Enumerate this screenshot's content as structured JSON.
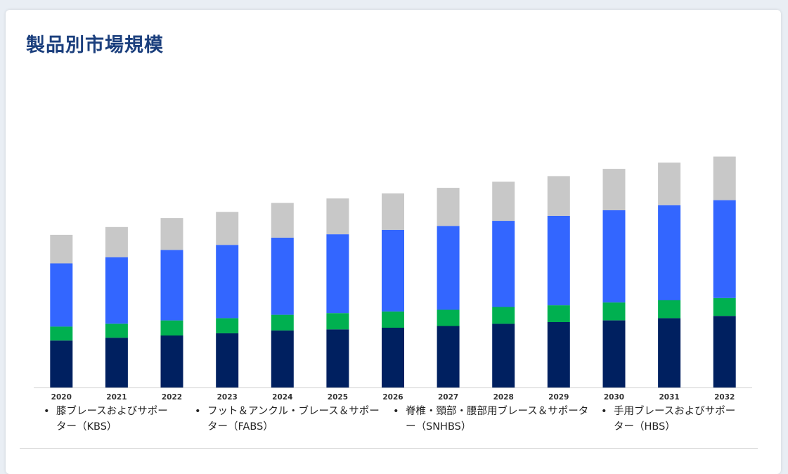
{
  "page": {
    "title": "製品別市場規模"
  },
  "chart_data": {
    "type": "bar",
    "stacked": true,
    "categories": [
      "2020",
      "2021",
      "2022",
      "2023",
      "2024",
      "2025",
      "2026",
      "2027",
      "2028",
      "2029",
      "2030",
      "2031",
      "2032"
    ],
    "series": [
      {
        "name": "膝ブレースおよびサポーター（KBS）",
        "color": "#002060",
        "values": [
          84,
          89,
          93,
          97,
          102,
          104,
          107,
          110,
          114,
          117,
          120,
          124,
          128
        ]
      },
      {
        "name": "フット＆アンクル・ブレース＆サポーター（FABS）",
        "color": "#00b050",
        "values": [
          25,
          25,
          27,
          27,
          28,
          29,
          29,
          29,
          30,
          30,
          32,
          32,
          32
        ]
      },
      {
        "name": "脊椎・頸部・腰部用ブレース＆サポーター（SNHBS）",
        "color": "#3366ff",
        "values": [
          113,
          119,
          126,
          131,
          138,
          141,
          146,
          150,
          154,
          160,
          165,
          170,
          175
        ]
      },
      {
        "name": "手用ブレースおよびサポーター（HBS）",
        "color": "#c8c8c8",
        "values": [
          51,
          54,
          57,
          59,
          62,
          64,
          65,
          68,
          70,
          71,
          74,
          76,
          78
        ]
      }
    ],
    "ylim": [
      0,
      415
    ],
    "grid": false,
    "legend_position": "bottom"
  }
}
